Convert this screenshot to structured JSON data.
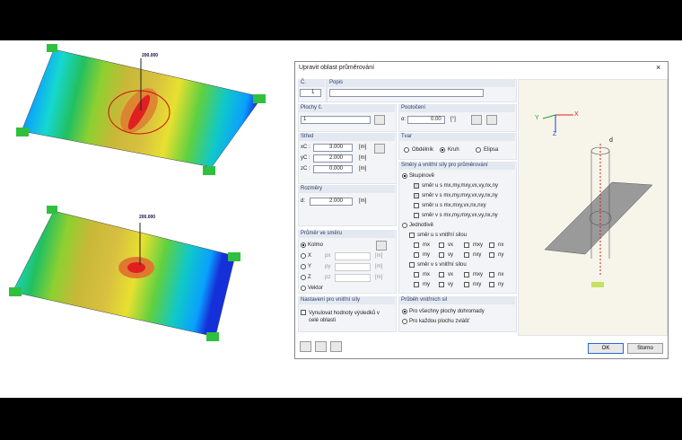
{
  "plots": [
    {
      "load_label": "200.000"
    },
    {
      "load_label": "200.000"
    }
  ],
  "dialog": {
    "title": "Upravit oblast průměrování",
    "number": {
      "label": "Č.",
      "value": "1"
    },
    "description": {
      "label": "Popis"
    },
    "surfaces": {
      "label": "Plochy č.",
      "value": "1"
    },
    "rotation": {
      "label": "Pootočení",
      "symbol": "α:",
      "value": "0.00",
      "unit": "[°]"
    },
    "center": {
      "label": "Střed",
      "rows": [
        {
          "symbol": "xC :",
          "value": "3.000",
          "unit": "[m]"
        },
        {
          "symbol": "yC :",
          "value": "2.000",
          "unit": "[m]"
        },
        {
          "symbol": "zC :",
          "value": "0.000",
          "unit": "[m]"
        }
      ]
    },
    "shape": {
      "label": "Tvar",
      "options": [
        "Obdélník",
        "Kruh",
        "Elipsa"
      ]
    },
    "dimensions": {
      "label": "Rozměry",
      "symbol": "d:",
      "value": "2.000",
      "unit": "[m]"
    },
    "directions": {
      "label": "Směry a vnitřní síly pro průměrování",
      "group": "Skupinově",
      "group_options": [
        "směr u s mx,my,mxy,vx,vy,nx,ny",
        "směr v s mx,my,mxy,vx,vy,nx,ny",
        "směr u s mx,mxy,vx,nx,nxy",
        "směr v s mx,my,mxy,vx,vy,nx,ny"
      ],
      "single": "Jednotlivě",
      "u_label": "směr u s vnitřní silou",
      "v_label": "směr v s vnitřní silou",
      "forces": [
        "mx",
        "vx",
        "mxy",
        "nx",
        "my",
        "vy",
        "nxy",
        "ny"
      ]
    },
    "average_direction": {
      "label": "Průměr ve směru",
      "options": [
        "Kolmo",
        "X",
        "Y",
        "Z",
        "Vektor"
      ],
      "components": [
        "px",
        "py",
        "pz"
      ],
      "unit": "[m]"
    },
    "force_settings": {
      "label": "Nastavení pro vnitřní síly",
      "checkbox": "Vynulovat hodnoty výsledků v celé oblasti"
    },
    "force_course": {
      "label": "Průběh vnitřních sil",
      "options": [
        "Pro všechny plochy dohromady",
        "Pro každou plochu zvlášť"
      ]
    },
    "buttons": [
      "OK",
      "Storno"
    ],
    "preview_axes": [
      "X",
      "Y",
      "Z",
      "d"
    ]
  }
}
